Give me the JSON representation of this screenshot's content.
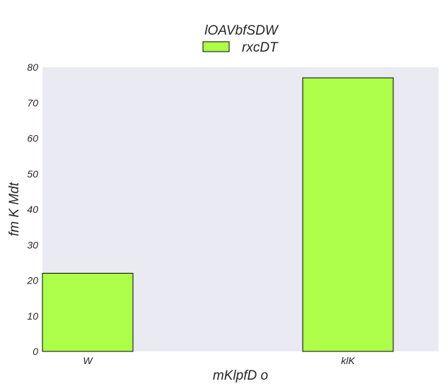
{
  "chart_data": {
    "type": "bar",
    "categories": [
      "W",
      "klK"
    ],
    "series": [
      {
        "name": "rxcDT",
        "values": [
          22,
          77
        ]
      }
    ],
    "legend_title": "lOAVbfSDW",
    "legend_position": "top-center",
    "xlabel": "mKlpfD o",
    "ylabel": "fm K Mdt",
    "ylim": [
      0,
      80
    ],
    "yticks": [
      0,
      10,
      20,
      30,
      40,
      50,
      60,
      70,
      80
    ],
    "grid": false,
    "colors": {
      "bar_fill": "#adff4a",
      "bar_edge": "#000000",
      "plot_background": "#eaeaf2"
    }
  }
}
